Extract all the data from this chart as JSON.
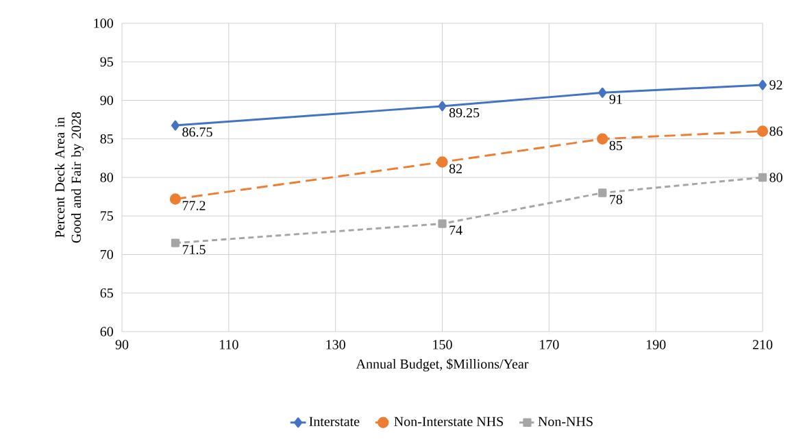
{
  "chart_data": {
    "type": "line",
    "xlabel": "Annual Budget, $Millions/Year",
    "ylabel": "Percent Deck Area in Good and Fair by 2028",
    "x": [
      100,
      150,
      180,
      210
    ],
    "series": [
      {
        "name": "Interstate",
        "color": "#4472c4",
        "values": [
          86.75,
          89.25,
          91,
          92
        ],
        "marker": "diamond",
        "line_style": "solid"
      },
      {
        "name": "Non-Interstate NHS",
        "color": "#ed7d31",
        "values": [
          77.2,
          82,
          85,
          86
        ],
        "marker": "circle",
        "line_style": "dashed"
      },
      {
        "name": "Non-NHS",
        "color": "#a5a5a5",
        "values": [
          71.5,
          74,
          78,
          80
        ],
        "marker": "square",
        "line_style": "dotted"
      }
    ],
    "xlim": [
      90,
      210
    ],
    "xticks": [
      90,
      110,
      130,
      150,
      170,
      190,
      210
    ],
    "ylim": [
      60,
      100
    ],
    "yticks": [
      60,
      65,
      70,
      75,
      80,
      85,
      90,
      95,
      100
    ],
    "grid": true,
    "legend": "bottom",
    "data_labels": true
  }
}
